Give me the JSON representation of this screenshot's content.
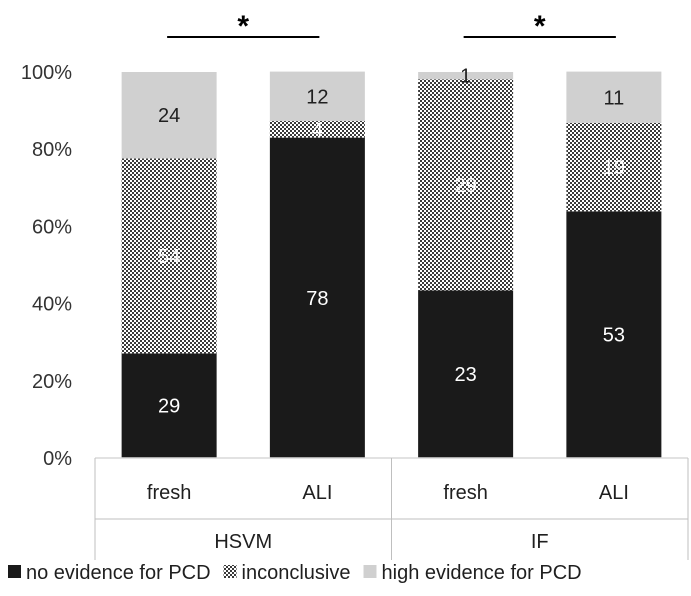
{
  "chart_data": {
    "type": "bar",
    "stacked": true,
    "percent_stacked": true,
    "title": "",
    "xlabel": "",
    "ylabel": "",
    "ylim": [
      0,
      100
    ],
    "y_ticks": [
      "0%",
      "20%",
      "40%",
      "60%",
      "80%",
      "100%"
    ],
    "grid": false,
    "legend_position": "bottom",
    "groups": [
      {
        "label": "HSVM",
        "categories": [
          "fresh",
          "ALI"
        ]
      },
      {
        "label": "IF",
        "categories": [
          "fresh",
          "ALI"
        ]
      }
    ],
    "categories": [
      "fresh",
      "ALI",
      "fresh",
      "ALI"
    ],
    "series": [
      {
        "name": "no evidence for PCD",
        "color": "#1a1a1a",
        "pattern": "solid",
        "counts": [
          29,
          78,
          23,
          53
        ],
        "percent": [
          27.1,
          83.0,
          43.4,
          63.9
        ]
      },
      {
        "name": "inconclusive",
        "color": "#3a3a3a",
        "pattern": "checker",
        "counts": [
          54,
          4,
          29,
          19
        ],
        "percent": [
          50.5,
          4.3,
          54.7,
          22.9
        ]
      },
      {
        "name": "high evidence for PCD",
        "color": "#d0d0d0",
        "pattern": "solid",
        "counts": [
          24,
          12,
          1,
          11
        ],
        "percent": [
          22.4,
          12.8,
          1.9,
          13.3
        ]
      }
    ],
    "significance": [
      {
        "group": "HSVM",
        "label": "*"
      },
      {
        "group": "IF",
        "label": "*"
      }
    ]
  }
}
